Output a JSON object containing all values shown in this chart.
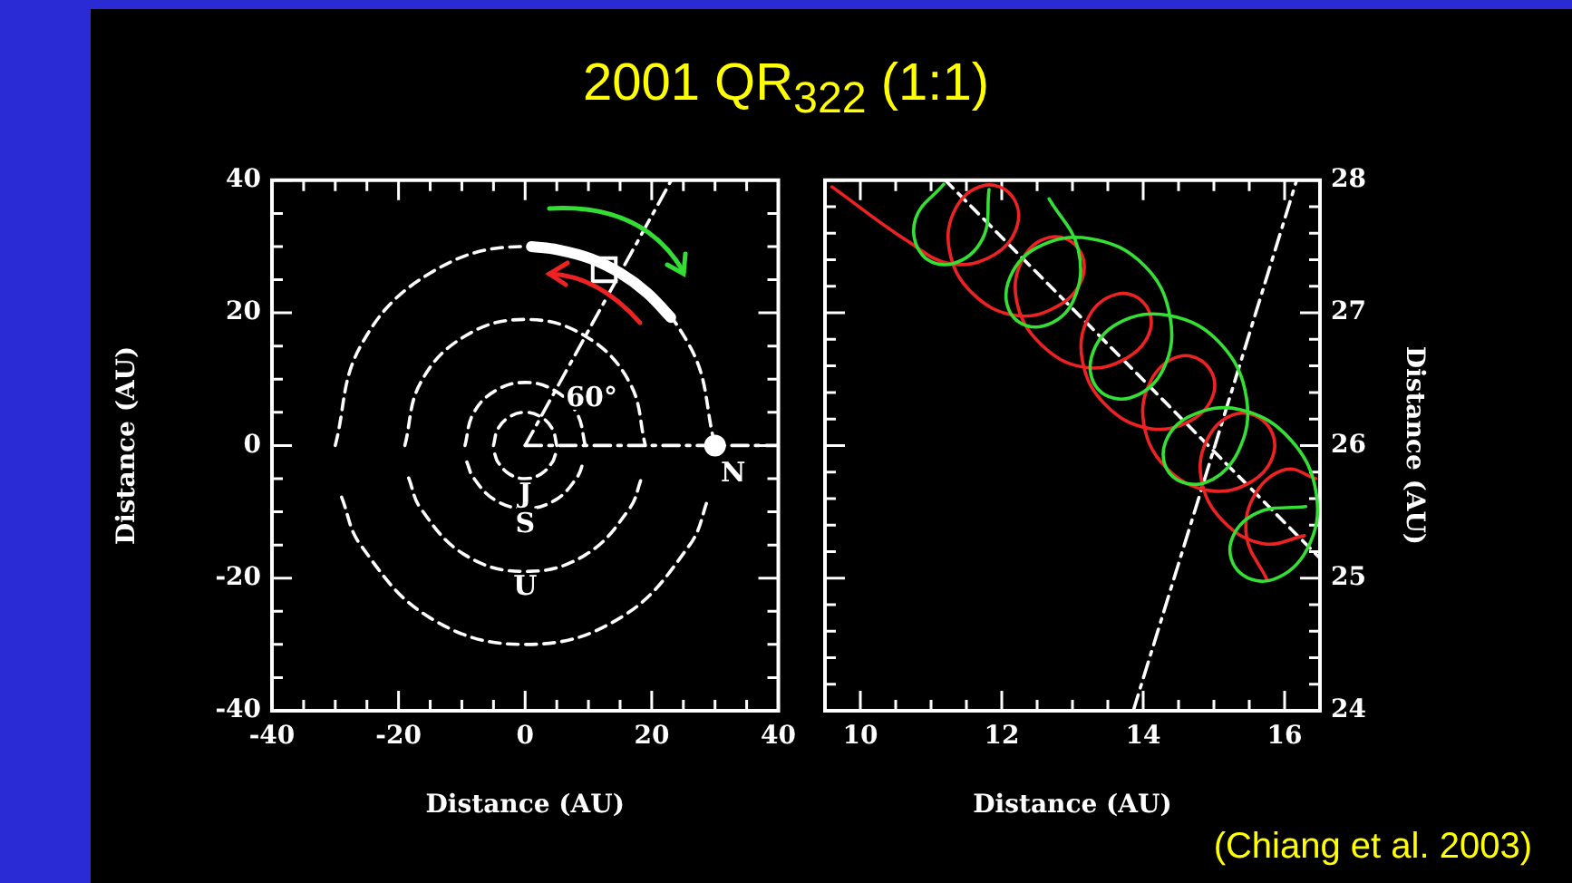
{
  "chart_data": [
    {
      "type": "line",
      "title": "2001 QR$_{322}$ (1:1)",
      "xlabel": "Distance (AU)",
      "ylabel": "Distance (AU)",
      "xlim": [
        -40,
        40
      ],
      "ylim": [
        -40,
        40
      ],
      "xticks": [
        -40,
        {
          "value": -35,
          "label": null
        },
        {
          "value": -30,
          "label": null
        },
        {
          "value": -25,
          "label": null
        },
        -20,
        {
          "value": -15,
          "label": null
        },
        {
          "value": -10,
          "label": null
        },
        {
          "value": -5,
          "label": null
        },
        0,
        {
          "value": 5,
          "label": null
        },
        {
          "value": 10,
          "label": null
        },
        {
          "value": 15,
          "label": null
        },
        20,
        {
          "value": 25,
          "label": null
        },
        {
          "value": 30,
          "label": null
        },
        {
          "value": 35,
          "label": null
        },
        40
      ],
      "yticks": [
        -40,
        {
          "value": -35,
          "label": null
        },
        {
          "value": -30,
          "label": null
        },
        {
          "value": -25,
          "label": null
        },
        -20,
        {
          "value": -15,
          "label": null
        },
        {
          "value": -10,
          "label": null
        },
        {
          "value": -5,
          "label": null
        },
        0,
        {
          "value": 5,
          "label": null
        },
        {
          "value": 10,
          "label": null
        },
        {
          "value": 15,
          "label": null
        },
        20,
        {
          "value": 25,
          "label": null
        },
        {
          "value": 30,
          "label": null
        },
        {
          "value": 35,
          "label": null
        },
        40
      ],
      "grid": false,
      "annotations": [
        {
          "text": "J",
          "x": 0,
          "y": -5
        },
        {
          "text": "S",
          "x": 0,
          "y": -9.5
        },
        {
          "text": "U",
          "x": 0,
          "y": -19
        },
        {
          "text": "N",
          "x": 30,
          "y": 0
        },
        {
          "text": "60°",
          "x": 10.5,
          "y": 7
        }
      ],
      "series": [
        {
          "color": "#ffffff",
          "line_style": "dashed",
          "x": [
            -5,
            -4.3,
            -2.5,
            0,
            2.5,
            4.3,
            5
          ],
          "values": [
            0,
            2.5,
            4.3,
            5,
            4.3,
            2.5,
            0
          ]
        },
        {
          "color": "#ffffff",
          "line_style": "dashed",
          "x": [
            -4.8,
            -4.3,
            -2.5,
            0,
            2.5,
            4.3,
            4.8
          ],
          "values": [
            -1.3,
            -2.5,
            -4.3,
            -5,
            -4.3,
            -2.5,
            -1.3
          ]
        },
        {
          "color": "#ffffff",
          "line_style": "dashed",
          "x": [
            -9.5,
            -8.2,
            -4.8,
            0,
            4.8,
            8.2,
            9.5
          ],
          "values": [
            0,
            4.8,
            8.2,
            9.5,
            8.2,
            4.8,
            0
          ]
        },
        {
          "color": "#ffffff",
          "line_style": "dashed",
          "x": [
            -9.2,
            -8.2,
            -4.8,
            0,
            4.8,
            8.2,
            9.2
          ],
          "values": [
            -2.5,
            -4.8,
            -8.2,
            -9.5,
            -8.2,
            -4.8,
            -2.5
          ]
        },
        {
          "color": "#ffffff",
          "line_style": "dashed",
          "x": [
            -19,
            -16.5,
            -9.5,
            0,
            9.5,
            16.5,
            19
          ],
          "values": [
            0,
            9.5,
            16.5,
            19,
            16.5,
            9.5,
            0
          ]
        },
        {
          "color": "#ffffff",
          "line_style": "dashed",
          "x": [
            -18.4,
            -16.5,
            -9.5,
            0,
            9.5,
            16.5,
            18.4
          ],
          "values": [
            -4.9,
            -9.5,
            -16.5,
            -19,
            -16.5,
            -9.5,
            -4.9
          ]
        },
        {
          "color": "#ffffff",
          "line_style": "dashed",
          "x": [
            -30,
            -26,
            -15,
            0,
            15,
            26,
            30
          ],
          "values": [
            0,
            15,
            26,
            30,
            26,
            15,
            0
          ]
        },
        {
          "color": "#ffffff",
          "line_style": "dashed",
          "x": [
            -29,
            -26,
            -15,
            0,
            15,
            26,
            29
          ],
          "values": [
            -7.8,
            -15,
            -26,
            -30,
            -26,
            -15,
            -7.8
          ]
        },
        {
          "color": "#ffffff",
          "line_style": "dotted",
          "x": [
            0,
            23.1
          ],
          "values": [
            0,
            40
          ]
        },
        {
          "color": "#ffffff",
          "line_style": "dotted",
          "x": [
            0,
            40
          ],
          "values": [
            0,
            0
          ]
        },
        {
          "color": "#ffffff",
          "line_style": "solid",
          "x": [
            1,
            5.2,
            10.3,
            15,
            19.3,
            23
          ],
          "values": [
            30,
            29.5,
            28.2,
            26,
            23,
            19.3
          ]
        },
        {
          "type": "scatter",
          "marker": "circle",
          "color": "#ffffff",
          "x": [
            30
          ],
          "values": [
            0
          ]
        },
        {
          "type": "scatter",
          "marker": "square",
          "color": "#ffffff",
          "x": [
            12.5
          ],
          "values": [
            26.5
          ]
        }
      ]
    },
    {
      "type": "line",
      "xlabel": "Distance (AU)",
      "ylabel": "Distance (AU)",
      "xlim": [
        9.5,
        16.5
      ],
      "ylim": [
        24,
        28
      ],
      "xticks": [
        10,
        {
          "value": 10.5,
          "label": null
        },
        {
          "value": 11,
          "label": null
        },
        {
          "value": 11.5,
          "label": null
        },
        12,
        {
          "value": 12.5,
          "label": null
        },
        {
          "value": 13,
          "label": null
        },
        {
          "value": 13.5,
          "label": null
        },
        14,
        {
          "value": 14.5,
          "label": null
        },
        {
          "value": 15,
          "label": null
        },
        {
          "value": 15.5,
          "label": null
        },
        16
      ],
      "yticks": [
        24,
        {
          "value": 24.2,
          "label": null
        },
        {
          "value": 24.4,
          "label": null
        },
        {
          "value": 24.6,
          "label": null
        },
        {
          "value": 24.8,
          "label": null
        },
        25,
        {
          "value": 25.2,
          "label": null
        },
        {
          "value": 25.4,
          "label": null
        },
        {
          "value": 25.6,
          "label": null
        },
        {
          "value": 25.8,
          "label": null
        },
        26,
        {
          "value": 26.2,
          "label": null
        },
        {
          "value": 26.4,
          "label": null
        },
        {
          "value": 26.6,
          "label": null
        },
        {
          "value": 26.8,
          "label": null
        },
        27,
        {
          "value": 27.2,
          "label": null
        },
        {
          "value": 27.4,
          "label": null
        },
        {
          "value": 27.6,
          "label": null
        },
        {
          "value": 27.8,
          "label": null
        },
        28
      ],
      "grid": false,
      "annotations": [
        "(Chiang et al. 2003)"
      ],
      "series": [
        {
          "color": "#33e033",
          "line_style": "solid",
          "x": [
            11.82,
            11.73,
            11.3,
            10.87,
            10.78,
            11.18,
            null,
            12.67,
            13.08,
            13.01,
            12.58,
            12.16,
            12.09,
            12.49,
            13.25,
            14.01,
            14.38,
            14.28,
            13.82,
            13.37,
            13.27,
            13.64,
            14.37,
            15.09,
            15.46,
            15.34,
            14.88,
            14.41,
            14.3,
            14.66,
            15.38,
            16.09,
            16.45,
            16.32,
            15.84,
            15.37,
            15.24,
            15.6,
            16.3
          ],
          "values": [
            27.93,
            27.56,
            27.37,
            27.44,
            27.71,
            27.97,
            null,
            27.86,
            27.48,
            27.09,
            26.9,
            26.97,
            27.23,
            27.49,
            27.56,
            27.36,
            26.97,
            26.57,
            26.36,
            26.42,
            26.67,
            26.92,
            26.98,
            26.77,
            26.36,
            25.95,
            25.72,
            25.77,
            26,
            26.22,
            26.27,
            26.04,
            25.63,
            25.22,
            24.99,
            25.04,
            25.27,
            25.49,
            25.54
          ]
        },
        {
          "color": "#ee2222",
          "line_style": "solid",
          "x": [
            15.75,
            15.46,
            15.59,
            16.02,
            16.44,
            null,
            16.28,
            15.7,
            15.13,
            14.82,
            14.93,
            15.33,
            15.73,
            15.85,
            15.54,
            14.94,
            14.33,
            14.01,
            14.11,
            14.5,
            14.89,
            15,
            14.68,
            14.07,
            13.46,
            13.14,
            13.23,
            13.62,
            14,
            14.1,
            13.77,
            13.16,
            12.54,
            12.21,
            12.3,
            12.68,
            13.06,
            13.15,
            12.82,
            12.2,
            11.58,
            11.26,
            11.35,
            11.74,
            12.13,
            12.22,
            11.9,
            11.28,
            10.67,
            9.6
          ],
          "values": [
            24.99,
            25.32,
            25.64,
            25.82,
            25.75,
            null,
            25.32,
            25.26,
            25.43,
            25.75,
            26.07,
            26.24,
            26.17,
            25.95,
            25.73,
            25.66,
            25.83,
            26.16,
            26.49,
            26.67,
            26.61,
            26.4,
            26.19,
            26.13,
            26.31,
            26.64,
            26.97,
            27.14,
            27.08,
            26.87,
            26.66,
            26.59,
            26.77,
            27.09,
            27.41,
            27.57,
            27.5,
            27.28,
            27.06,
            26.98,
            27.15,
            27.47,
            27.79,
            27.96,
            27.89,
            27.66,
            27.44,
            27.37,
            27.54,
            27.95
          ]
        },
        {
          "color": "#ffffff",
          "line_style": "dashed",
          "x": [
            11.2,
            16.5
          ],
          "values": [
            28,
            25.15
          ]
        },
        {
          "color": "#ffffff",
          "line_style": "dotted",
          "x": [
            13.86,
            16.17
          ],
          "values": [
            24,
            28
          ]
        }
      ]
    }
  ]
}
